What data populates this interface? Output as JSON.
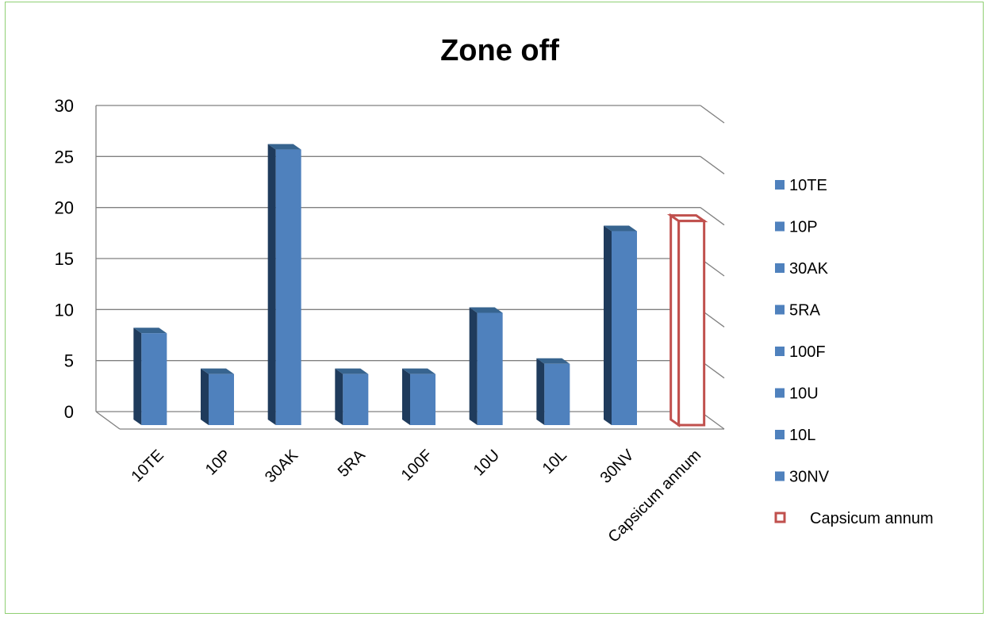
{
  "chart_data": {
    "type": "bar",
    "title": "Zone off",
    "categories": [
      "10TE",
      "10P",
      "30AK",
      "5RA",
      "100F",
      "10U",
      "10L",
      "30NV",
      "Capsicum annum"
    ],
    "values": [
      9,
      5,
      27,
      5,
      5,
      11,
      6,
      19,
      20
    ],
    "series": [
      {
        "name": "10TE",
        "category": "10TE",
        "value": 9,
        "style": "filled"
      },
      {
        "name": "10P",
        "category": "10P",
        "value": 5,
        "style": "filled"
      },
      {
        "name": "30AK",
        "category": "30AK",
        "value": 27,
        "style": "filled"
      },
      {
        "name": "5RA",
        "category": "5RA",
        "value": 5,
        "style": "filled"
      },
      {
        "name": "100F",
        "category": "100F",
        "value": 5,
        "style": "filled"
      },
      {
        "name": "10U",
        "category": "10U",
        "value": 11,
        "style": "filled"
      },
      {
        "name": "10L",
        "category": "10L",
        "value": 6,
        "style": "filled"
      },
      {
        "name": "30NV",
        "category": "30NV",
        "value": 19,
        "style": "filled"
      },
      {
        "name": "Capsicum annum",
        "category": "Capsicum annum",
        "value": 20,
        "style": "outline"
      }
    ],
    "yticks": [
      "0",
      "5",
      "10",
      "15",
      "20",
      "25",
      "30"
    ],
    "ylim": [
      0,
      30
    ],
    "xlabel": "",
    "ylabel": "",
    "grid": true,
    "legend_position": "right",
    "colors": {
      "bar_front": "#4f81bd",
      "bar_side": "#1f3b5c",
      "bar_top": "#37648f",
      "outline_series": "#c0504d",
      "gridline": "#808080",
      "text": "#000000",
      "frame_border": "#8fcf73"
    }
  }
}
